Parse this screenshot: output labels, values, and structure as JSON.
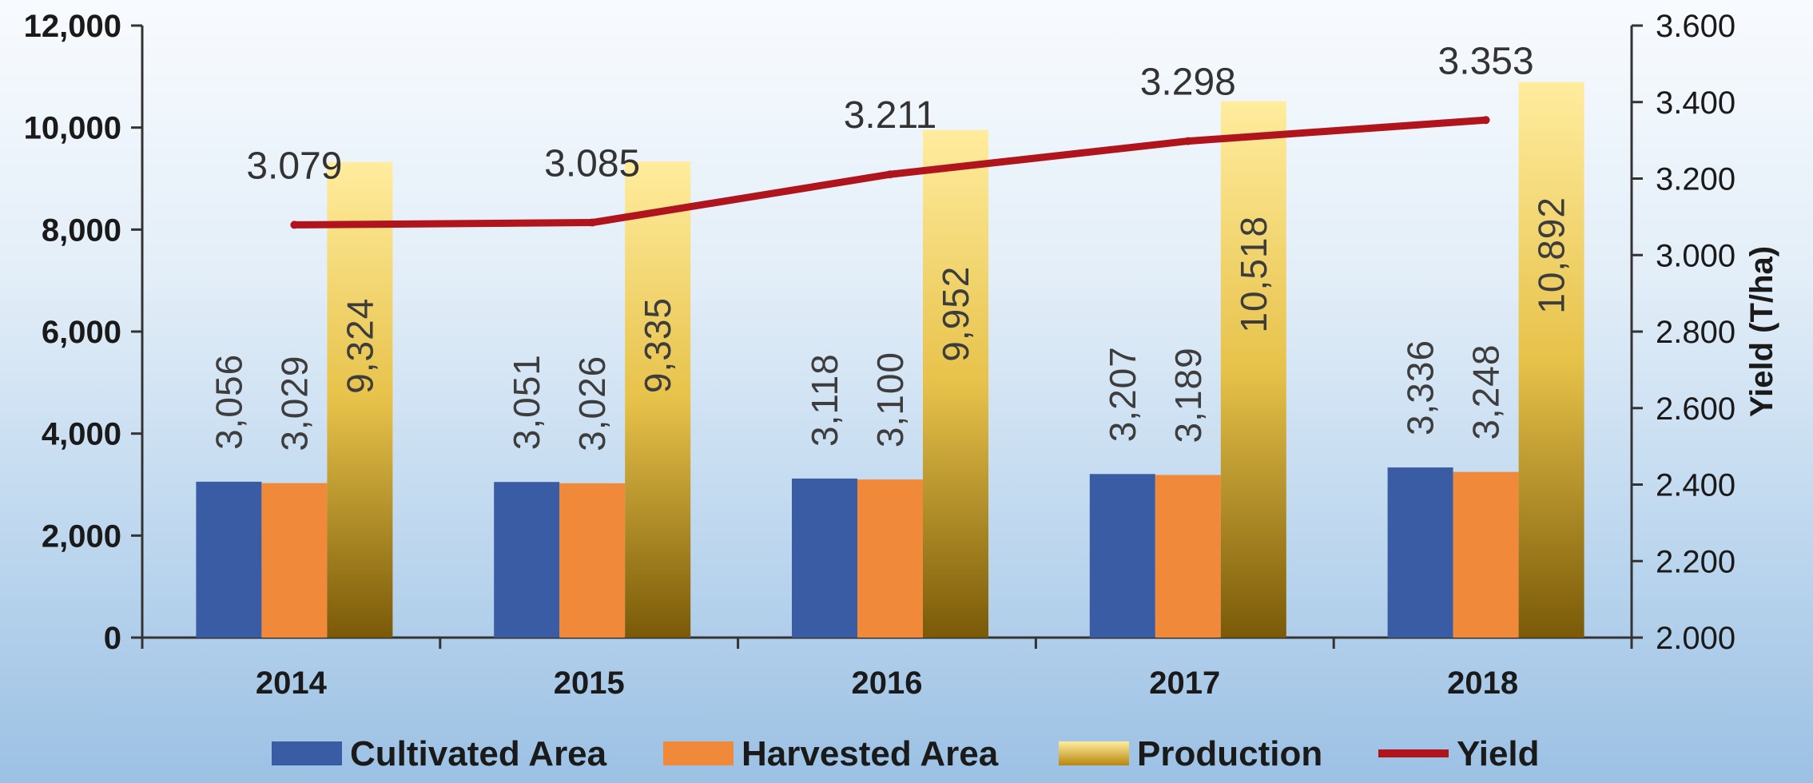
{
  "chart_data": {
    "type": "bar",
    "categories": [
      "2014",
      "2015",
      "2016",
      "2017",
      "2018"
    ],
    "series": [
      {
        "name": "Cultivated Area",
        "type": "bar",
        "axis": "left",
        "color": "#3a5ca4",
        "values": [
          3056,
          3051,
          3118,
          3207,
          3336
        ],
        "labels": [
          "3,056",
          "3,051",
          "3,118",
          "3,207",
          "3,336"
        ]
      },
      {
        "name": "Harvested Area",
        "type": "bar",
        "axis": "left",
        "color": "#f08a3a",
        "values": [
          3029,
          3026,
          3100,
          3189,
          3248
        ],
        "labels": [
          "3,029",
          "3,026",
          "3,100",
          "3,189",
          "3,248"
        ]
      },
      {
        "name": "Production",
        "type": "bar",
        "axis": "left",
        "color": "#d9a91f",
        "values": [
          9324,
          9335,
          9952,
          10518,
          10892
        ],
        "labels": [
          "9,324",
          "9,335",
          "9,952",
          "10,518",
          "10,892"
        ]
      },
      {
        "name": "Yield",
        "type": "line",
        "axis": "right",
        "color": "#b0141c",
        "values": [
          3.079,
          3.085,
          3.211,
          3.298,
          3.353
        ],
        "labels": [
          "3.079",
          "3.085",
          "3.211",
          "3.298",
          "3.353"
        ]
      }
    ],
    "y_left": {
      "lim": [
        0,
        12000
      ],
      "ticks": [
        "0",
        "2,000",
        "4,000",
        "6,000",
        "8,000",
        "10,000",
        "12,000"
      ]
    },
    "y_right": {
      "lim": [
        2.0,
        3.6
      ],
      "ticks": [
        "2.000",
        "2.200",
        "2.400",
        "2.600",
        "2.800",
        "3.000",
        "3.200",
        "3.400",
        "3.600"
      ],
      "label": "Yield  (T/ha)"
    },
    "legend": {
      "position": "bottom"
    },
    "grid": false
  }
}
